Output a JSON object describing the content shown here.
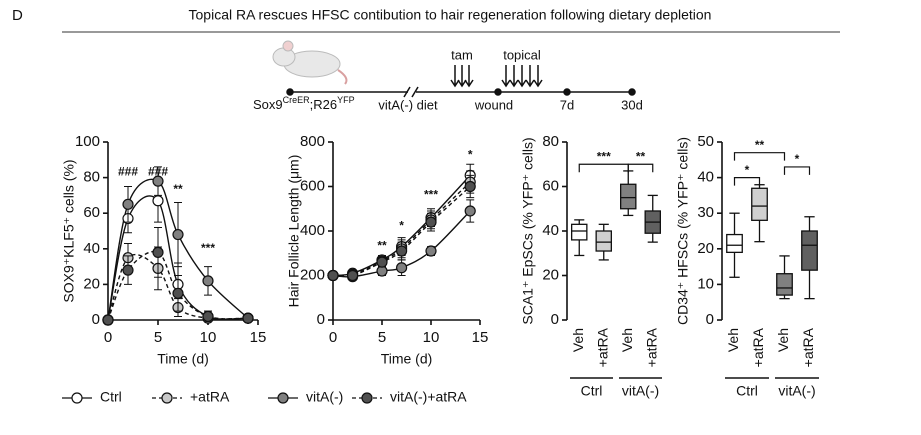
{
  "panel_label": "D",
  "title": "Topical RA rescues HFSC contibution to hair regeneration following dietary depletion",
  "timeline": {
    "genotype": [
      "Sox9",
      "CreER",
      ";R26",
      "YFP"
    ],
    "diet": "vitA(-) diet",
    "wound": "wound",
    "tam": "tam",
    "topical": "topical",
    "day7": "7d",
    "day30": "30d"
  },
  "chart_data": [
    {
      "type": "line",
      "ylabel": "SOX9⁺KLF5⁺ cells (%)",
      "xlabel": "Time (d)",
      "xlim": [
        0,
        15
      ],
      "xticks": [
        0,
        5,
        10,
        15
      ],
      "ylim": [
        0,
        100
      ],
      "yticks": [
        0,
        20,
        40,
        60,
        80,
        100
      ],
      "x": [
        0,
        2,
        5,
        7,
        10,
        14
      ],
      "series": [
        {
          "name": "Ctrl",
          "color": "#ffffff",
          "dashed": false,
          "values": [
            0,
            57,
            67,
            20,
            2,
            1
          ],
          "errors": [
            0,
            8,
            12,
            12,
            3,
            1
          ]
        },
        {
          "name": "+atRA",
          "color": "#c8c8c8",
          "dashed": true,
          "values": [
            0,
            35,
            29,
            7,
            1,
            1
          ],
          "errors": [
            0,
            8,
            12,
            5,
            2,
            1
          ]
        },
        {
          "name": "vitA(-)",
          "color": "#808080",
          "dashed": false,
          "values": [
            0,
            65,
            78,
            48,
            22,
            1
          ],
          "errors": [
            0,
            10,
            8,
            18,
            8,
            1
          ]
        },
        {
          "name": "vitA(-)+atRA",
          "color": "#505050",
          "dashed": true,
          "values": [
            0,
            28,
            38,
            15,
            2,
            1
          ],
          "errors": [
            0,
            8,
            14,
            10,
            3,
            1
          ]
        }
      ],
      "annotations": [
        {
          "text": "###",
          "x": 2,
          "y": 83
        },
        {
          "text": "###",
          "x": 5,
          "y": 83
        },
        {
          "text": "**",
          "x": 7,
          "y": 73
        },
        {
          "text": "***",
          "x": 10,
          "y": 40
        }
      ]
    },
    {
      "type": "line",
      "ylabel": "Hair Follicle Length (μm)",
      "xlabel": "Time (d)",
      "xlim": [
        0,
        15
      ],
      "xticks": [
        0,
        5,
        10,
        15
      ],
      "ylim": [
        0,
        800
      ],
      "yticks": [
        0,
        200,
        400,
        600,
        800
      ],
      "x": [
        0,
        2,
        5,
        7,
        10,
        14
      ],
      "series": [
        {
          "name": "Ctrl",
          "color": "#ffffff",
          "dashed": false,
          "values": [
            200,
            210,
            270,
            330,
            460,
            650
          ],
          "errors": [
            15,
            15,
            20,
            40,
            40,
            50
          ]
        },
        {
          "name": "+atRA",
          "color": "#c8c8c8",
          "dashed": true,
          "values": [
            200,
            205,
            265,
            320,
            450,
            620
          ],
          "errors": [
            15,
            15,
            20,
            40,
            40,
            50
          ]
        },
        {
          "name": "vitA(-)",
          "color": "#808080",
          "dashed": false,
          "values": [
            200,
            195,
            220,
            235,
            310,
            490
          ],
          "errors": [
            15,
            15,
            20,
            35,
            20,
            50
          ]
        },
        {
          "name": "vitA(-)+atRA",
          "color": "#505050",
          "dashed": true,
          "values": [
            200,
            200,
            260,
            310,
            440,
            600
          ],
          "errors": [
            15,
            15,
            20,
            40,
            40,
            50
          ]
        }
      ],
      "annotations": [
        {
          "text": "**",
          "x": 5,
          "y": 330
        },
        {
          "text": "*",
          "x": 7,
          "y": 420
        },
        {
          "text": "***",
          "x": 10,
          "y": 560
        },
        {
          "text": "*",
          "x": 14,
          "y": 740
        }
      ]
    },
    {
      "type": "box",
      "ylabel": "SCA1⁺ EpSCs (% YFP⁺ cells)",
      "ylim": [
        0,
        80
      ],
      "yticks": [
        0,
        20,
        40,
        60,
        80
      ],
      "groups": [
        {
          "name": "Ctrl",
          "categories": [
            "Veh",
            "+atRA"
          ],
          "boxes": [
            {
              "min": 29,
              "q1": 36,
              "median": 40,
              "q3": 43,
              "max": 45,
              "color": "#ffffff"
            },
            {
              "min": 27,
              "q1": 31,
              "median": 35,
              "q3": 40,
              "max": 43,
              "color": "#d0d0d0"
            }
          ]
        },
        {
          "name": "vitA(-)",
          "categories": [
            "Veh",
            "+atRA"
          ],
          "boxes": [
            {
              "min": 47,
              "q1": 50,
              "median": 55,
              "q3": 61,
              "max": 67,
              "color": "#808080"
            },
            {
              "min": 35,
              "q1": 39,
              "median": 44,
              "q3": 49,
              "max": 56,
              "color": "#606060"
            }
          ]
        }
      ],
      "significance": [
        {
          "label": "***",
          "between": [
            0,
            2
          ],
          "y": 70
        },
        {
          "label": "**",
          "between": [
            2,
            3
          ],
          "y": 70
        }
      ]
    },
    {
      "type": "box",
      "ylabel": "CD34⁺ HFSCs (% YFP⁺ cells)",
      "ylim": [
        0,
        50
      ],
      "yticks": [
        0,
        10,
        20,
        30,
        40,
        50
      ],
      "groups": [
        {
          "name": "Ctrl",
          "categories": [
            "Veh",
            "+atRA"
          ],
          "boxes": [
            {
              "min": 12,
              "q1": 19,
              "median": 21,
              "q3": 24,
              "max": 30,
              "color": "#ffffff"
            },
            {
              "min": 22,
              "q1": 28,
              "median": 32,
              "q3": 37,
              "max": 38,
              "color": "#d0d0d0"
            }
          ]
        },
        {
          "name": "vitA(-)",
          "categories": [
            "Veh",
            "+atRA"
          ],
          "boxes": [
            {
              "min": 6,
              "q1": 7,
              "median": 9,
              "q3": 13,
              "max": 18,
              "color": "#808080"
            },
            {
              "min": 6,
              "q1": 14,
              "median": 21,
              "q3": 25,
              "max": 29,
              "color": "#606060"
            }
          ]
        }
      ],
      "significance": [
        {
          "label": "*",
          "between": [
            0,
            1
          ],
          "y": 40
        },
        {
          "label": "**",
          "between": [
            0,
            2
          ],
          "y": 47
        },
        {
          "label": "*",
          "between": [
            2,
            3
          ],
          "y": 43
        }
      ]
    }
  ]
}
